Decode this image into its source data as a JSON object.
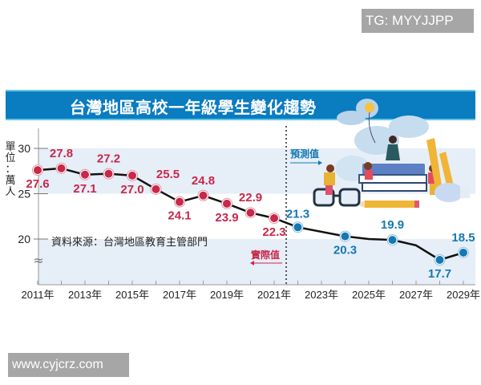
{
  "watermarks": {
    "top": "TG: MYYJJPP",
    "bottom": "www.cyjcrz.com"
  },
  "banner": {
    "title": "台灣地區高校一年級學生變化趨勢"
  },
  "axis": {
    "y_unit_chars": [
      "單",
      "位",
      "：",
      "萬",
      "人"
    ],
    "y_unit": "單位：萬人",
    "y_ticks": [
      "30",
      "25",
      "20"
    ],
    "axis_break_glyph": "≈",
    "x_tick_labels": [
      "2011年",
      "2013年",
      "2015年",
      "2017年",
      "2019年",
      "2021年",
      "2023年",
      "2025年",
      "2027年",
      "2029年"
    ]
  },
  "annotations": {
    "source": "資料來源：台灣地區教育主管部門",
    "forecast_label": "預測值",
    "actual_label": "實際值"
  },
  "colors": {
    "banner": "#0a7cc0",
    "banner_border": "#5fc7ea",
    "actual": "#c8284a",
    "forecast": "#1678b2",
    "line": "#111111",
    "band": "#e6eef8"
  },
  "chart_data": {
    "type": "line",
    "title": "台灣地區高校一年級學生變化趨勢",
    "xlabel": "",
    "ylabel": "單位：萬人",
    "ylim": [
      16.5,
      31
    ],
    "y_ticks": [
      20,
      25,
      30
    ],
    "grid": false,
    "legend": "inline annotations (實際值 / 預測值) separated by dotted vertical line between 2021 and 2022",
    "x_tick_labels": [
      "2011年",
      "2013年",
      "2015年",
      "2017年",
      "2019年",
      "2021年",
      "2023年",
      "2025年",
      "2027年",
      "2029年"
    ],
    "series": [
      {
        "name": "實際值",
        "x": [
          2011,
          2012,
          2013,
          2014,
          2015,
          2016,
          2017,
          2018,
          2019,
          2020,
          2021
        ],
        "values": [
          27.6,
          27.8,
          27.1,
          27.2,
          27.0,
          25.5,
          24.1,
          24.8,
          23.9,
          22.9,
          22.3
        ]
      },
      {
        "name": "預測值",
        "x": [
          2022,
          2024,
          2026,
          2028,
          2029
        ],
        "values": [
          21.3,
          20.3,
          19.9,
          17.7,
          18.5
        ]
      }
    ],
    "annotations": [
      "資料來源：台灣地區教育主管部門"
    ]
  }
}
